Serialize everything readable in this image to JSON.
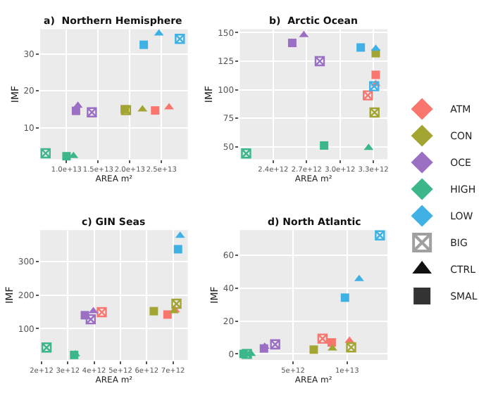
{
  "chart_data": [
    {
      "type": "scatter",
      "title": "a)  Northern Hemisphere",
      "xlabel": "AREA m²",
      "ylabel": "IMF",
      "grid": true,
      "legend": "right",
      "xlim": [
        5850000000000.0,
        29150000000000.0
      ],
      "xticks": [
        {
          "value": 10000000000000.0,
          "label": "1.0e+13"
        },
        {
          "value": 15000000000000.0,
          "label": "1.5e+13"
        },
        {
          "value": 20000000000000.0,
          "label": "2.0e+13"
        },
        {
          "value": 25000000000000.0,
          "label": "2.5e+13"
        }
      ],
      "ylim": [
        1.5,
        36.7
      ],
      "yticks": [
        10,
        20,
        30
      ],
      "series": [
        {
          "color": "#f8766d",
          "marker": "triangle",
          "x": [
            26200000000000.0
          ],
          "values": [
            15.6
          ]
        },
        {
          "color": "#f8766d",
          "marker": "square",
          "x": [
            24000000000000.0
          ],
          "values": [
            14.7
          ]
        },
        {
          "color": "#a3a533",
          "marker": "square",
          "x": [
            19200000000000.0
          ],
          "values": [
            15.0
          ]
        },
        {
          "color": "#a3a533",
          "marker": "cross",
          "x": [
            19400000000000.0
          ],
          "values": [
            14.8
          ]
        },
        {
          "color": "#a3a533",
          "marker": "triangle",
          "x": [
            22000000000000.0
          ],
          "values": [
            15.0
          ]
        },
        {
          "color": "#9b6fc4",
          "marker": "triangle",
          "x": [
            11800000000000.0
          ],
          "values": [
            16.0
          ]
        },
        {
          "color": "#9b6fc4",
          "marker": "square",
          "x": [
            11500000000000.0
          ],
          "values": [
            14.6
          ]
        },
        {
          "color": "#9b6fc4",
          "marker": "cross",
          "x": [
            14000000000000.0
          ],
          "values": [
            14.2
          ]
        },
        {
          "color": "#3cb78a",
          "marker": "cross",
          "x": [
            6700000000000.0
          ],
          "values": [
            3.1
          ]
        },
        {
          "color": "#3cb78a",
          "marker": "square",
          "x": [
            10000000000000.0
          ],
          "values": [
            2.3
          ]
        },
        {
          "color": "#3cb78a",
          "marker": "triangle",
          "x": [
            11100000000000.0
          ],
          "values": [
            2.4
          ]
        },
        {
          "color": "#3fb1e5",
          "marker": "cross",
          "x": [
            27900000000000.0
          ],
          "values": [
            34.1
          ]
        },
        {
          "color": "#3fb1e5",
          "marker": "triangle",
          "x": [
            24600000000000.0
          ],
          "values": [
            35.6
          ]
        },
        {
          "color": "#3fb1e5",
          "marker": "square",
          "x": [
            22200000000000.0
          ],
          "values": [
            32.5
          ]
        },
        {
          "name": "ATM",
          "color": "#f8766d",
          "marker": "diamond"
        },
        {
          "name": "CON",
          "color": "#a3a533",
          "marker": "diamond"
        },
        {
          "name": "OCE",
          "color": "#9b6fc4",
          "marker": "diamond"
        },
        {
          "name": "HIGH",
          "color": "#3cb78a",
          "marker": "diamond"
        },
        {
          "name": "LOW",
          "color": "#3fb1e5",
          "marker": "diamond"
        },
        {
          "name": "BIG",
          "color": "#a0a0a0",
          "marker": "cross"
        },
        {
          "name": "CTRL",
          "color": "#111111",
          "marker": "triangle"
        },
        {
          "name": "SMAL",
          "color": "#333333",
          "marker": "square"
        }
      ]
    },
    {
      "type": "scatter",
      "title": "b)  Arctic Ocean",
      "xlabel": "AREA m²",
      "ylabel": "IMF",
      "grid": true,
      "xlim": [
        2100000000000.0,
        3425000000000.0
      ],
      "xticks": [
        {
          "value": 2400000000000.0,
          "label": "2.4e+12"
        },
        {
          "value": 2700000000000.0,
          "label": "2.7e+12"
        },
        {
          "value": 3000000000000.0,
          "label": "3.0e+12"
        },
        {
          "value": 3300000000000.0,
          "label": "3.3e+12"
        }
      ],
      "ylim": [
        39,
        153
      ],
      "yticks": [
        50,
        75,
        100,
        125,
        150
      ],
      "series": [
        {
          "color": "#f8766d",
          "marker": "square",
          "x": [
            3321000000000.0
          ],
          "values": [
            113
          ]
        },
        {
          "color": "#f8766d",
          "marker": "triangle",
          "x": [
            3321000000000.0
          ],
          "values": [
            105
          ]
        },
        {
          "color": "#f8766d",
          "marker": "cross",
          "x": [
            3250000000000.0
          ],
          "values": [
            95
          ]
        },
        {
          "color": "#a3a533",
          "marker": "square",
          "x": [
            3321000000000.0
          ],
          "values": [
            132
          ]
        },
        {
          "color": "#a3a533",
          "marker": "cross",
          "x": [
            3310000000000.0
          ],
          "values": [
            80
          ]
        },
        {
          "color": "#9b6fc4",
          "marker": "square",
          "x": [
            2571000000000.0
          ],
          "values": [
            141
          ]
        },
        {
          "color": "#9b6fc4",
          "marker": "triangle",
          "x": [
            2675000000000.0
          ],
          "values": [
            148
          ]
        },
        {
          "color": "#9b6fc4",
          "marker": "cross",
          "x": [
            2818000000000.0
          ],
          "values": [
            125
          ]
        },
        {
          "color": "#3cb78a",
          "marker": "cross",
          "x": [
            2157000000000.0
          ],
          "values": [
            44
          ]
        },
        {
          "color": "#3cb78a",
          "marker": "square",
          "x": [
            2857000000000.0
          ],
          "values": [
            51
          ]
        },
        {
          "color": "#3cb78a",
          "marker": "triangle",
          "x": [
            3257000000000.0
          ],
          "values": [
            49
          ]
        },
        {
          "color": "#3fb1e5",
          "marker": "square",
          "x": [
            3186000000000.0
          ],
          "values": [
            137
          ]
        },
        {
          "color": "#3fb1e5",
          "marker": "triangle",
          "x": [
            3321000000000.0
          ],
          "values": [
            136
          ]
        },
        {
          "color": "#3fb1e5",
          "marker": "cross",
          "x": [
            3307000000000.0
          ],
          "values": [
            103
          ]
        }
      ]
    },
    {
      "type": "scatter",
      "title": "c) GIN Seas",
      "xlabel": "AREA m²",
      "ylabel": "IMF",
      "grid": true,
      "xlim": [
        1950000000000.0,
        7560000000000.0
      ],
      "xticks": [
        {
          "value": 2000000000000.0,
          "label": "2e+12"
        },
        {
          "value": 3000000000000.0,
          "label": "3e+12"
        },
        {
          "value": 4000000000000.0,
          "label": "4e+12"
        },
        {
          "value": 5000000000000.0,
          "label": "5e+12"
        },
        {
          "value": 6000000000000.0,
          "label": "6e+12"
        },
        {
          "value": 7000000000000.0,
          "label": "7e+12"
        }
      ],
      "ylim": [
        7,
        393
      ],
      "yticks": [
        100,
        200,
        300
      ],
      "series": [
        {
          "color": "#f8766d",
          "marker": "cross",
          "x": [
            4290000000000.0
          ],
          "values": [
            149
          ]
        },
        {
          "color": "#f8766d",
          "marker": "square",
          "x": [
            6790000000000.0
          ],
          "values": [
            142
          ]
        },
        {
          "color": "#f8766d",
          "marker": "triangle",
          "x": [
            7080000000000.0
          ],
          "values": [
            155
          ]
        },
        {
          "color": "#a3a533",
          "marker": "square",
          "x": [
            6270000000000.0
          ],
          "values": [
            152
          ]
        },
        {
          "color": "#a3a533",
          "marker": "triangle",
          "x": [
            7030000000000.0
          ],
          "values": [
            152
          ]
        },
        {
          "color": "#a3a533",
          "marker": "cross",
          "x": [
            7130000000000.0
          ],
          "values": [
            174
          ]
        },
        {
          "color": "#9b6fc4",
          "marker": "square",
          "x": [
            3650000000000.0
          ],
          "values": [
            140
          ]
        },
        {
          "color": "#9b6fc4",
          "marker": "triangle",
          "x": [
            3970000000000.0
          ],
          "values": [
            152
          ]
        },
        {
          "color": "#9b6fc4",
          "marker": "cross",
          "x": [
            3870000000000.0
          ],
          "values": [
            128
          ]
        },
        {
          "color": "#3cb78a",
          "marker": "cross",
          "x": [
            2190000000000.0
          ],
          "values": [
            44
          ]
        },
        {
          "color": "#3cb78a",
          "marker": "square",
          "x": [
            3240000000000.0
          ],
          "values": [
            22
          ]
        },
        {
          "color": "#3cb78a",
          "marker": "triangle",
          "x": [
            3290000000000.0
          ],
          "values": [
            24
          ]
        },
        {
          "color": "#3fb1e5",
          "marker": "square",
          "x": [
            7190000000000.0
          ],
          "values": [
            336
          ]
        },
        {
          "color": "#3fb1e5",
          "marker": "triangle",
          "x": [
            7270000000000.0
          ],
          "values": [
            376
          ]
        }
      ]
    },
    {
      "type": "scatter",
      "title": "d) North Atlantic",
      "xlabel": "AREA m²",
      "ylabel": "IMF",
      "grid": true,
      "xlim": [
        77000000000.0,
        13730000000000.0
      ],
      "xticks": [
        {
          "value": 5000000000000.0,
          "label": "5e+12"
        },
        {
          "value": 10000000000000.0,
          "label": "1e+13"
        }
      ],
      "ylim": [
        -3.7,
        75.3
      ],
      "yticks": [
        0,
        20,
        40,
        60
      ],
      "series": [
        {
          "color": "#f8766d",
          "marker": "cross",
          "x": [
            7730000000000.0
          ],
          "values": [
            9.3
          ]
        },
        {
          "color": "#f8766d",
          "marker": "square",
          "x": [
            8580000000000.0
          ],
          "values": [
            7.0
          ]
        },
        {
          "color": "#f8766d",
          "marker": "triangle",
          "x": [
            10230000000000.0
          ],
          "values": [
            8.1
          ]
        },
        {
          "color": "#a3a533",
          "marker": "square",
          "x": [
            6920000000000.0
          ],
          "values": [
            2.6
          ]
        },
        {
          "color": "#a3a533",
          "marker": "triangle",
          "x": [
            8650000000000.0
          ],
          "values": [
            3.3
          ]
        },
        {
          "color": "#a3a533",
          "marker": "cross",
          "x": [
            10380000000000.0
          ],
          "values": [
            4.0
          ]
        },
        {
          "color": "#9b6fc4",
          "marker": "square",
          "x": [
            2310000000000.0
          ],
          "values": [
            3.3
          ]
        },
        {
          "color": "#9b6fc4",
          "marker": "triangle",
          "x": [
            2380000000000.0
          ],
          "values": [
            4.4
          ]
        },
        {
          "color": "#9b6fc4",
          "marker": "cross",
          "x": [
            3350000000000.0
          ],
          "values": [
            5.8
          ]
        },
        {
          "color": "#3cb78a",
          "marker": "square",
          "x": [
            420000000000.0
          ],
          "values": [
            0
          ]
        },
        {
          "color": "#3cb78a",
          "marker": "cross",
          "x": [
            730000000000.0
          ],
          "values": [
            0
          ]
        },
        {
          "color": "#3cb78a",
          "marker": "triangle",
          "x": [
            1120000000000.0
          ],
          "values": [
            0
          ]
        },
        {
          "color": "#3fb1e5",
          "marker": "square",
          "x": [
            9810000000000.0
          ],
          "values": [
            34.2
          ]
        },
        {
          "color": "#3fb1e5",
          "marker": "triangle",
          "x": [
            11120000000000.0
          ],
          "values": [
            45.6
          ]
        },
        {
          "color": "#3fb1e5",
          "marker": "cross",
          "x": [
            13040000000000.0
          ],
          "values": [
            72.1
          ]
        }
      ]
    }
  ]
}
